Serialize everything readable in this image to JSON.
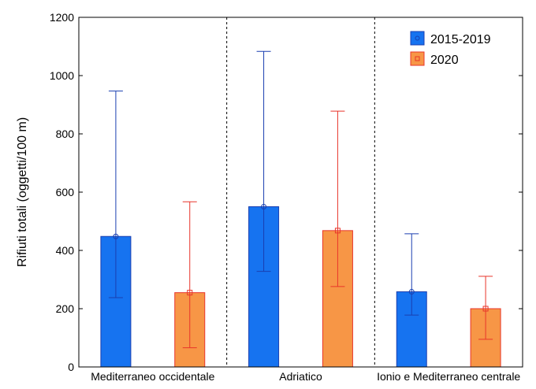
{
  "chart_data": {
    "type": "bar",
    "title": "",
    "xlabel": "",
    "ylabel": "Rifiuti totali (oggetti/100 m)",
    "ylim": [
      0,
      1200
    ],
    "yticks": [
      0,
      200,
      400,
      600,
      800,
      1000,
      1200
    ],
    "grid": false,
    "legend_position": "top-right",
    "categories": [
      "Mediterraneo occidentale",
      "Adriatico",
      "Ionio e Mediterraneo centrale"
    ],
    "series": [
      {
        "name": "2015-2019",
        "color": "#1673f0",
        "edge_color": "#1a3fb0",
        "marker": "circle",
        "values": [
          448,
          550,
          258
        ],
        "error_low": [
          238,
          328,
          178
        ],
        "error_high": [
          947,
          1083,
          457
        ]
      },
      {
        "name": "2020",
        "color": "#f79646",
        "edge_color": "#e8352a",
        "marker": "square",
        "values": [
          255,
          468,
          200
        ],
        "error_low": [
          66,
          276,
          95
        ],
        "error_high": [
          567,
          878,
          311
        ]
      }
    ],
    "group_separators": "dashed"
  }
}
